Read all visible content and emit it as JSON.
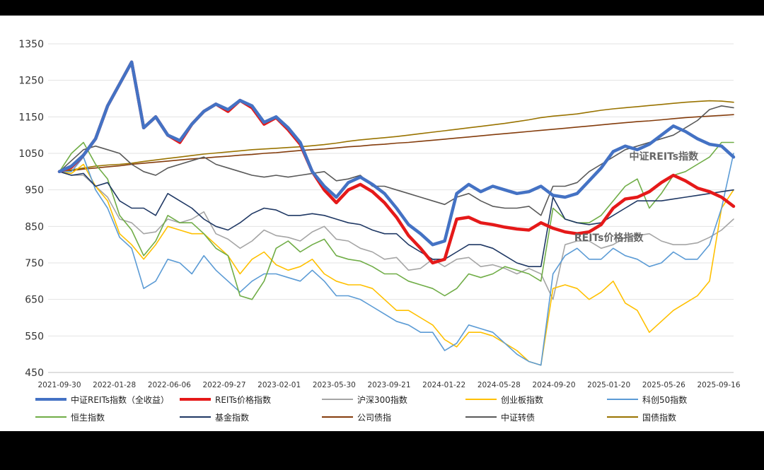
{
  "chart_data": {
    "type": "line",
    "ylim": [
      450,
      1350
    ],
    "yticks": [
      1350,
      1250,
      1150,
      1050,
      950,
      850,
      750,
      650,
      550,
      450
    ],
    "xlabels": [
      "2021-09-30",
      "2022-01-28",
      "2022-06-06",
      "2022-09-27",
      "2023-02-01",
      "2023-05-30",
      "2023-09-21",
      "2024-01-22",
      "2024-05-28",
      "2024-09-20",
      "2025-01-20",
      "2025-05-26",
      "2025-09-16"
    ],
    "grid": true,
    "legend_position": "bottom",
    "annotations": [
      {
        "text": "中证REITs指数",
        "x": "2025-05-26",
        "y": 1033
      },
      {
        "text": "REITs价格指数",
        "x": "2025-01-20",
        "y": 810
      }
    ],
    "series": [
      {
        "name": "中证REITs指数（全收益）",
        "color": "#4472C4",
        "width": 4.5,
        "values": [
          1000,
          1015,
          1045,
          1090,
          1180,
          1240,
          1300,
          1120,
          1150,
          1100,
          1085,
          1130,
          1165,
          1185,
          1170,
          1195,
          1180,
          1135,
          1150,
          1120,
          1080,
          1000,
          960,
          930,
          970,
          985,
          965,
          940,
          900,
          855,
          830,
          800,
          810,
          940,
          965,
          945,
          960,
          950,
          940,
          945,
          960,
          935,
          930,
          940,
          975,
          1010,
          1055,
          1070,
          1060,
          1075,
          1100,
          1125,
          1110,
          1090,
          1075,
          1070,
          1040
        ]
      },
      {
        "name": "REITs价格指数",
        "color": "#E51919",
        "width": 4.5,
        "values": [
          1000,
          1012,
          1045,
          1090,
          1180,
          1240,
          1300,
          1120,
          1150,
          1100,
          1080,
          1130,
          1165,
          1185,
          1165,
          1195,
          1175,
          1130,
          1148,
          1115,
          1075,
          1000,
          950,
          915,
          950,
          965,
          945,
          915,
          875,
          825,
          790,
          750,
          760,
          870,
          875,
          860,
          855,
          848,
          843,
          840,
          860,
          845,
          835,
          830,
          835,
          855,
          900,
          925,
          930,
          945,
          970,
          990,
          975,
          955,
          945,
          930,
          905
        ]
      },
      {
        "name": "沪深300指数",
        "color": "#A5A5A5",
        "width": 1.6,
        "values": [
          1000,
          990,
          990,
          960,
          930,
          870,
          860,
          830,
          835,
          870,
          860,
          870,
          890,
          830,
          815,
          790,
          810,
          840,
          825,
          820,
          810,
          835,
          850,
          815,
          810,
          790,
          780,
          760,
          765,
          730,
          735,
          760,
          740,
          760,
          765,
          740,
          745,
          735,
          720,
          735,
          720,
          650,
          800,
          810,
          810,
          790,
          800,
          820,
          825,
          830,
          810,
          800,
          800,
          805,
          820,
          840,
          870
        ]
      },
      {
        "name": "创业板指数",
        "color": "#FFC000",
        "width": 1.6,
        "values": [
          1000,
          995,
          1020,
          960,
          920,
          830,
          800,
          760,
          800,
          850,
          840,
          830,
          830,
          800,
          770,
          720,
          760,
          780,
          745,
          730,
          740,
          760,
          720,
          700,
          690,
          690,
          680,
          650,
          620,
          620,
          600,
          580,
          540,
          520,
          560,
          560,
          550,
          530,
          510,
          480,
          470,
          680,
          690,
          680,
          650,
          670,
          700,
          640,
          620,
          560,
          590,
          620,
          640,
          660,
          700,
          900,
          950
        ]
      },
      {
        "name": "科创50指数",
        "color": "#5B9BD5",
        "width": 1.6,
        "values": [
          1000,
          1000,
          1040,
          950,
          900,
          820,
          790,
          680,
          700,
          760,
          750,
          720,
          770,
          730,
          700,
          670,
          700,
          720,
          720,
          710,
          700,
          730,
          700,
          660,
          660,
          650,
          630,
          610,
          590,
          580,
          560,
          560,
          510,
          530,
          580,
          570,
          560,
          530,
          500,
          480,
          470,
          720,
          770,
          790,
          760,
          760,
          790,
          770,
          760,
          740,
          750,
          780,
          760,
          760,
          800,
          900,
          1050
        ]
      },
      {
        "name": "恒生指数",
        "color": "#70AD47",
        "width": 1.6,
        "values": [
          1000,
          1050,
          1080,
          1020,
          980,
          880,
          840,
          770,
          810,
          880,
          860,
          860,
          830,
          790,
          770,
          660,
          650,
          700,
          790,
          810,
          780,
          800,
          815,
          770,
          760,
          755,
          740,
          720,
          720,
          700,
          690,
          680,
          660,
          680,
          720,
          710,
          720,
          740,
          730,
          720,
          700,
          900,
          870,
          860,
          860,
          880,
          920,
          960,
          980,
          900,
          940,
          990,
          1000,
          1020,
          1040,
          1080,
          1080
        ]
      },
      {
        "name": "基金指数",
        "color": "#1F3864",
        "width": 1.6,
        "values": [
          1000,
          990,
          995,
          960,
          970,
          920,
          900,
          900,
          880,
          940,
          920,
          900,
          870,
          850,
          840,
          860,
          885,
          900,
          895,
          880,
          880,
          885,
          880,
          870,
          860,
          855,
          840,
          830,
          830,
          800,
          780,
          760,
          760,
          780,
          800,
          800,
          790,
          770,
          750,
          740,
          740,
          930,
          870,
          860,
          855,
          860,
          880,
          900,
          920,
          920,
          920,
          925,
          930,
          935,
          940,
          945,
          950
        ]
      },
      {
        "name": "公司债指",
        "color": "#843C0C",
        "width": 1.6,
        "values": [
          1000,
          1003,
          1007,
          1010,
          1013,
          1016,
          1020,
          1023,
          1026,
          1029,
          1032,
          1035,
          1037,
          1040,
          1042,
          1045,
          1047,
          1050,
          1052,
          1055,
          1058,
          1060,
          1062,
          1065,
          1068,
          1070,
          1073,
          1075,
          1078,
          1080,
          1083,
          1086,
          1089,
          1092,
          1095,
          1098,
          1101,
          1104,
          1107,
          1110,
          1113,
          1116,
          1119,
          1122,
          1125,
          1128,
          1131,
          1134,
          1137,
          1139,
          1142,
          1145,
          1148,
          1150,
          1152,
          1154,
          1156
        ]
      },
      {
        "name": "中证转债",
        "color": "#595959",
        "width": 1.6,
        "values": [
          1000,
          1030,
          1060,
          1070,
          1060,
          1050,
          1020,
          1000,
          990,
          1010,
          1020,
          1030,
          1040,
          1020,
          1010,
          1000,
          990,
          985,
          990,
          985,
          990,
          995,
          1000,
          975,
          980,
          990,
          960,
          960,
          950,
          940,
          930,
          920,
          910,
          930,
          940,
          920,
          905,
          900,
          900,
          905,
          880,
          960,
          960,
          970,
          1000,
          1020,
          1040,
          1060,
          1070,
          1080,
          1090,
          1100,
          1120,
          1140,
          1170,
          1180,
          1175
        ]
      },
      {
        "name": "国债指数",
        "color": "#997300",
        "width": 1.6,
        "values": [
          1000,
          1005,
          1010,
          1015,
          1018,
          1020,
          1023,
          1028,
          1032,
          1036,
          1040,
          1044,
          1048,
          1051,
          1054,
          1057,
          1060,
          1062,
          1064,
          1066,
          1068,
          1071,
          1074,
          1078,
          1083,
          1087,
          1090,
          1093,
          1096,
          1100,
          1104,
          1108,
          1112,
          1116,
          1120,
          1124,
          1128,
          1132,
          1137,
          1142,
          1148,
          1152,
          1155,
          1158,
          1163,
          1168,
          1172,
          1175,
          1178,
          1181,
          1184,
          1187,
          1190,
          1192,
          1194,
          1193,
          1190
        ]
      }
    ]
  }
}
